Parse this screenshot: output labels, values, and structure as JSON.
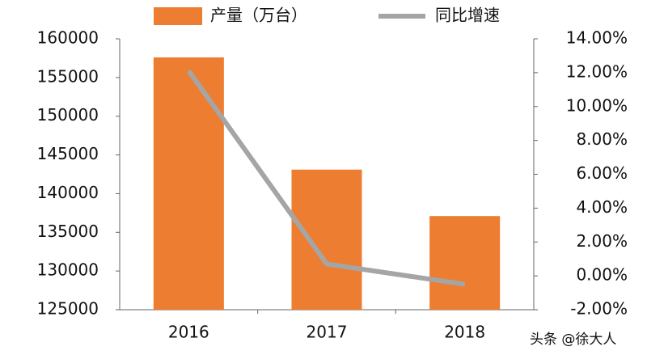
{
  "chart_data": {
    "type": "bar",
    "categories": [
      "2016",
      "2017",
      "2018"
    ],
    "series": [
      {
        "name": "产量（万台）",
        "type": "bar",
        "color": "#ed7d31",
        "values": [
          157600,
          143100,
          137100
        ]
      },
      {
        "name": "同比增速",
        "type": "line",
        "color": "#a5a5a5",
        "axis": "y2",
        "values": [
          12.1,
          0.7,
          -0.5
        ]
      }
    ],
    "ylim": [
      125000,
      160000
    ],
    "yticks": [
      125000,
      130000,
      135000,
      140000,
      145000,
      150000,
      155000,
      160000
    ],
    "y2lim": [
      -2,
      14
    ],
    "y2ticks": [
      {
        "value": -2,
        "label": "-2.00%"
      },
      {
        "value": 0,
        "label": "0.00%"
      },
      {
        "value": 2,
        "label": "2.00%"
      },
      {
        "value": 4,
        "label": "4.00%"
      },
      {
        "value": 6,
        "label": "6.00%"
      },
      {
        "value": 8,
        "label": "8.00%"
      },
      {
        "value": 10,
        "label": "10.00%"
      },
      {
        "value": 12,
        "label": "12.00%"
      },
      {
        "value": 14,
        "label": "14.00%"
      }
    ],
    "legend": "top",
    "watermark": "头条 @徐大人"
  }
}
